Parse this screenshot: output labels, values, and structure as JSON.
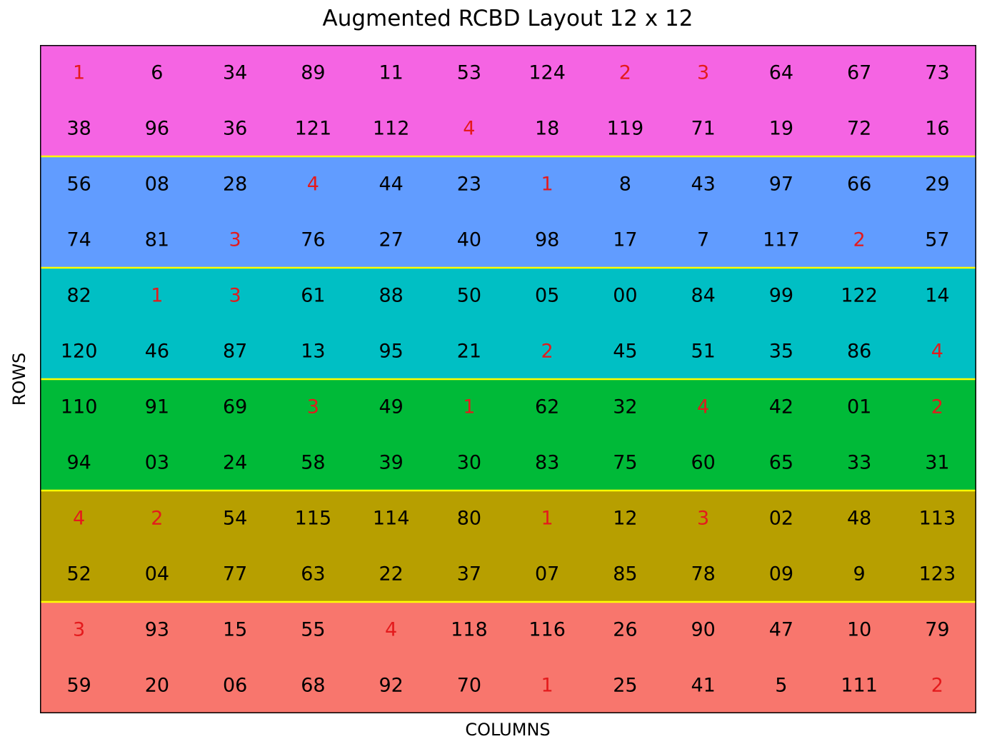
{
  "chart_data": {
    "type": "heatmap",
    "title": "Augmented RCBD Layout 12 x 12",
    "xlabel": "COLUMNS",
    "ylabel": "ROWS",
    "n_rows": 12,
    "n_cols": 12,
    "rows_per_block": 2,
    "block_colors": [
      "#f564e3",
      "#619cff",
      "#00bfc4",
      "#00ba38",
      "#b79f00",
      "#f8766d"
    ],
    "block_separator_color": "#ffff00",
    "check_color": "#e41a1c",
    "entry_color": "#000000",
    "checks": [
      "1",
      "2",
      "3",
      "4"
    ],
    "cells": [
      [
        "1",
        "6",
        "34",
        "89",
        "11",
        "53",
        "124",
        "2",
        "3",
        "64",
        "67",
        "73"
      ],
      [
        "38",
        "96",
        "36",
        "121",
        "112",
        "4",
        "18",
        "119",
        "71",
        "19",
        "72",
        "16"
      ],
      [
        "56",
        "08",
        "28",
        "4",
        "44",
        "23",
        "1",
        "8",
        "43",
        "97",
        "66",
        "29"
      ],
      [
        "74",
        "81",
        "3",
        "76",
        "27",
        "40",
        "98",
        "17",
        "7",
        "117",
        "2",
        "57"
      ],
      [
        "82",
        "1",
        "3",
        "61",
        "88",
        "50",
        "05",
        "00",
        "84",
        "99",
        "122",
        "14"
      ],
      [
        "120",
        "46",
        "87",
        "13",
        "95",
        "21",
        "2",
        "45",
        "51",
        "35",
        "86",
        "4"
      ],
      [
        "110",
        "91",
        "69",
        "3",
        "49",
        "1",
        "62",
        "32",
        "4",
        "42",
        "01",
        "2"
      ],
      [
        "94",
        "03",
        "24",
        "58",
        "39",
        "30",
        "83",
        "75",
        "60",
        "65",
        "33",
        "31"
      ],
      [
        "4",
        "2",
        "54",
        "115",
        "114",
        "80",
        "1",
        "12",
        "3",
        "02",
        "48",
        "113"
      ],
      [
        "52",
        "04",
        "77",
        "63",
        "22",
        "37",
        "07",
        "85",
        "78",
        "09",
        "9",
        "123"
      ],
      [
        "3",
        "93",
        "15",
        "55",
        "4",
        "118",
        "116",
        "26",
        "90",
        "47",
        "10",
        "79"
      ],
      [
        "59",
        "20",
        "06",
        "68",
        "92",
        "70",
        "1",
        "25",
        "41",
        "5",
        "111",
        "2"
      ]
    ]
  }
}
